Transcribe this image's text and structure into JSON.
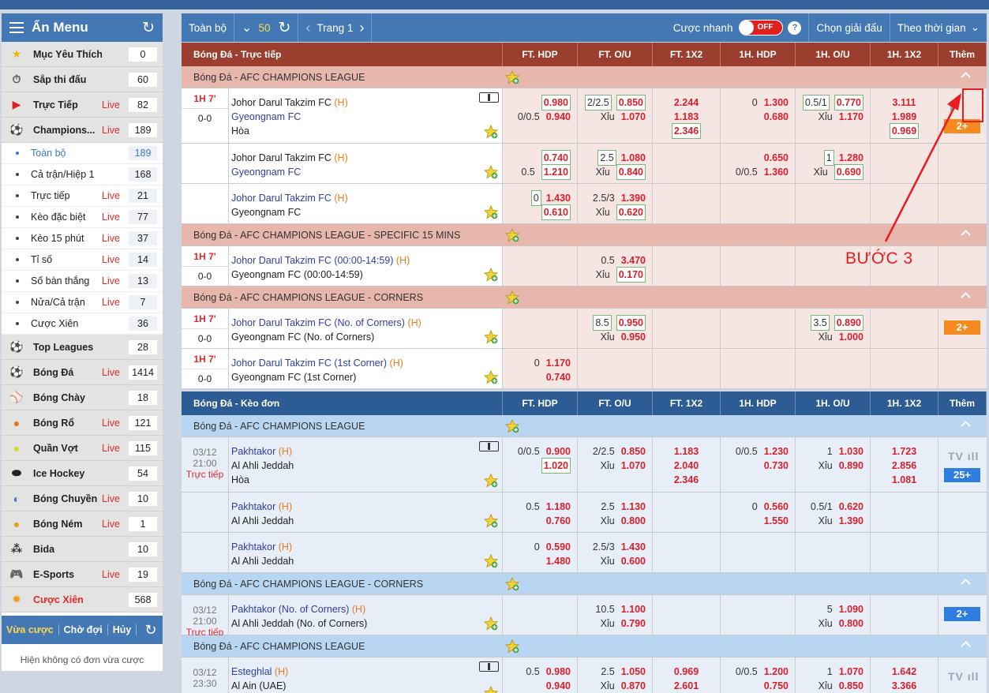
{
  "sidebar": {
    "title": "Ẩn Menu",
    "items_top": [
      {
        "label": "Mục Yêu Thích",
        "live": "",
        "count": "0",
        "icon": "star-icon",
        "glyph": "★",
        "color": "#f0b400"
      },
      {
        "label": "Sắp thi đấu",
        "live": "",
        "count": "60",
        "icon": "stopwatch-icon",
        "glyph": "⏱",
        "color": "#555"
      },
      {
        "label": "Trực Tiếp",
        "live": "Live",
        "count": "82",
        "icon": "play-circle-icon",
        "glyph": "▶",
        "color": "#d22"
      },
      {
        "label": "Champions...",
        "live": "Live",
        "count": "189",
        "icon": "soccer-ball-icon",
        "glyph": "⚽",
        "color": "#222"
      }
    ],
    "subitems": [
      {
        "label": "Toàn bộ",
        "live": "",
        "count": "189",
        "active": true
      },
      {
        "label": "Cả trận/Hiệp 1",
        "live": "",
        "count": "168"
      },
      {
        "label": "Trực tiếp",
        "live": "Live",
        "count": "21"
      },
      {
        "label": "Kèo đặc biệt",
        "live": "Live",
        "count": "77"
      },
      {
        "label": "Kèo 15 phút",
        "live": "Live",
        "count": "37"
      },
      {
        "label": "Tỉ số",
        "live": "Live",
        "count": "14"
      },
      {
        "label": "Số bàn thắng",
        "live": "Live",
        "count": "13"
      },
      {
        "label": "Nửa/Cả trận",
        "live": "Live",
        "count": "7"
      },
      {
        "label": "Cược Xiên",
        "live": "",
        "count": "36"
      }
    ],
    "items_bottom": [
      {
        "label": "Top Leagues",
        "live": "",
        "count": "28",
        "icon": "globe-ball-icon",
        "glyph": "⚽",
        "color": "#2a6bc8"
      },
      {
        "label": "Bóng Đá",
        "live": "Live",
        "count": "1414",
        "icon": "soccer-ball-icon",
        "glyph": "⚽",
        "color": "#222"
      },
      {
        "label": "Bóng Chày",
        "live": "",
        "count": "18",
        "icon": "baseball-icon",
        "glyph": "⚾",
        "color": "#b33"
      },
      {
        "label": "Bóng Rổ",
        "live": "Live",
        "count": "121",
        "icon": "basketball-icon",
        "glyph": "●",
        "color": "#e0761c"
      },
      {
        "label": "Quần Vợt",
        "live": "Live",
        "count": "115",
        "icon": "tennis-ball-icon",
        "glyph": "●",
        "color": "#d9d920"
      },
      {
        "label": "Ice Hockey",
        "live": "",
        "count": "54",
        "icon": "hockey-puck-icon",
        "glyph": "⬬",
        "color": "#222"
      },
      {
        "label": "Bóng Chuyền",
        "live": "Live",
        "count": "10",
        "icon": "volleyball-icon",
        "glyph": "◐",
        "color": "#3b6fd0"
      },
      {
        "label": "Bóng Ném",
        "live": "Live",
        "count": "1",
        "icon": "handball-icon",
        "glyph": "●",
        "color": "#e0a020"
      },
      {
        "label": "Bida",
        "live": "",
        "count": "10",
        "icon": "billiards-icon",
        "glyph": "⁂",
        "color": "#333"
      },
      {
        "label": "E-Sports",
        "live": "Live",
        "count": "19",
        "icon": "gamepad-icon",
        "glyph": "🎮",
        "color": "#3d5fb8"
      },
      {
        "label": "Cược Xiên",
        "live": "",
        "count": "568",
        "icon": "parlay-icon",
        "glyph": "✹",
        "color": "#f0a020",
        "red": true
      }
    ],
    "tabs": {
      "recent": "Vừa cược",
      "waiting": "Chờ đợi",
      "cancel": "Hủy"
    },
    "empty": "Hiện không có đơn vừa cược"
  },
  "toolbar": {
    "all": "Toàn bộ",
    "pagesize": "50",
    "page": "Trang 1",
    "quick": "Cược nhanh",
    "toggle": "OFF",
    "help": "?",
    "choose": "Chọn giải đấu",
    "sort": "Theo thời gian"
  },
  "columns": [
    "FT. HDP",
    "FT. O/U",
    "FT. 1X2",
    "1H. HDP",
    "1H. O/U",
    "1H. 1X2",
    "Thêm"
  ],
  "live_section": "Bóng Đá - Trực tiếp",
  "pre_section": "Bóng Đá - Kèo đơn",
  "annotation": "BƯỚC 3"
}
